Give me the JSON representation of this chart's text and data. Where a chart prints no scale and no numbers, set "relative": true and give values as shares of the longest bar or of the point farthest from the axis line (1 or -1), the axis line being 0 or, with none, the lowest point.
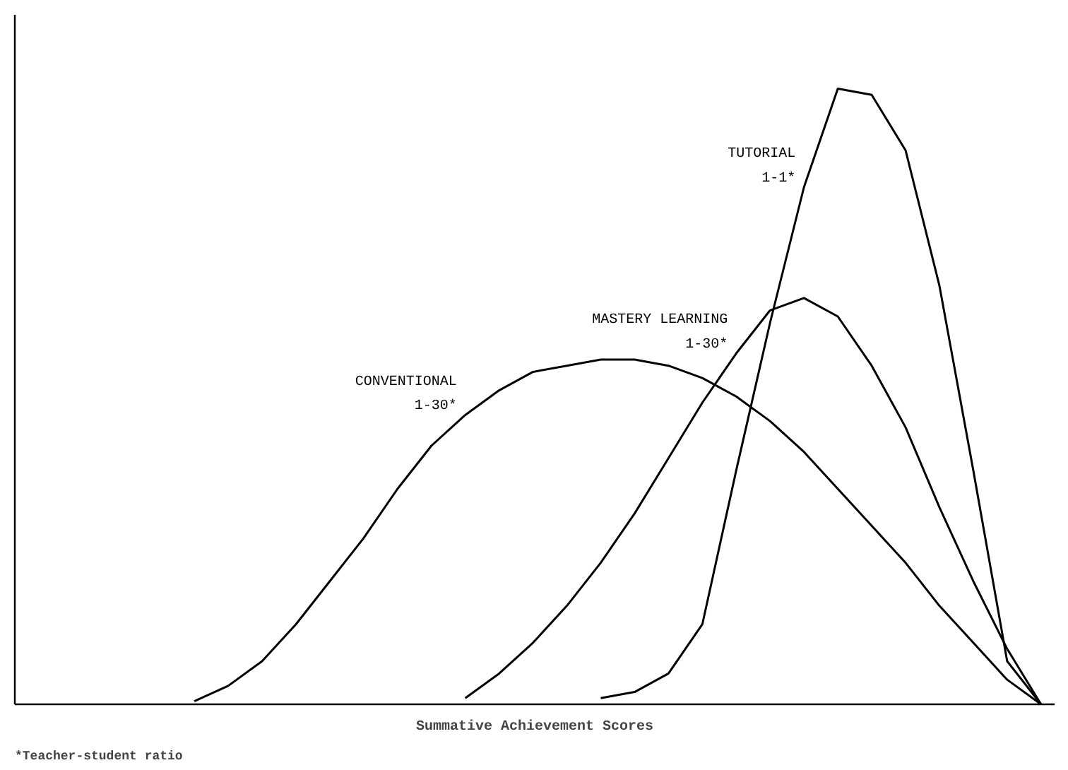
{
  "chart_data": {
    "type": "line",
    "relative": true,
    "xlabel": "Summative Achievement Scores",
    "annotations": [
      "*Teacher-student ratio"
    ],
    "categories": [
      null,
      null,
      null,
      null,
      null,
      null,
      null,
      null,
      null,
      null,
      null,
      null,
      null,
      null,
      null,
      null,
      null,
      null,
      null,
      null,
      null,
      null,
      null,
      null,
      null,
      null,
      null,
      null,
      null,
      null,
      null
    ],
    "series": [
      {
        "name": "CONVENTIONAL 1-30*",
        "color": "#000000",
        "values": [
          null,
          null,
          null,
          null,
          null,
          0.005,
          0.03,
          0.07,
          0.13,
          0.2,
          0.27,
          0.35,
          0.42,
          0.47,
          0.51,
          0.54,
          0.55,
          0.56,
          0.56,
          0.55,
          0.53,
          0.5,
          0.46,
          0.41,
          0.35,
          0.29,
          0.23,
          0.16,
          0.1,
          0.04,
          0
        ]
      },
      {
        "name": "MASTERY LEARNING 1-30*",
        "color": "#000000",
        "values": [
          null,
          null,
          null,
          null,
          null,
          null,
          null,
          null,
          null,
          null,
          null,
          null,
          null,
          0.01,
          0.05,
          0.1,
          0.16,
          0.23,
          0.31,
          0.4,
          0.49,
          0.57,
          0.64,
          0.66,
          0.63,
          0.55,
          0.45,
          0.32,
          0.2,
          0.09,
          0
        ]
      },
      {
        "name": "TUTORIAL 1-1*",
        "color": "#000000",
        "values": [
          null,
          null,
          null,
          null,
          null,
          null,
          null,
          null,
          null,
          null,
          null,
          null,
          null,
          null,
          null,
          null,
          null,
          0.01,
          0.02,
          0.05,
          0.13,
          0.38,
          0.62,
          0.84,
          1.0,
          0.99,
          0.9,
          0.68,
          0.38,
          0.07,
          0
        ]
      }
    ]
  }
}
